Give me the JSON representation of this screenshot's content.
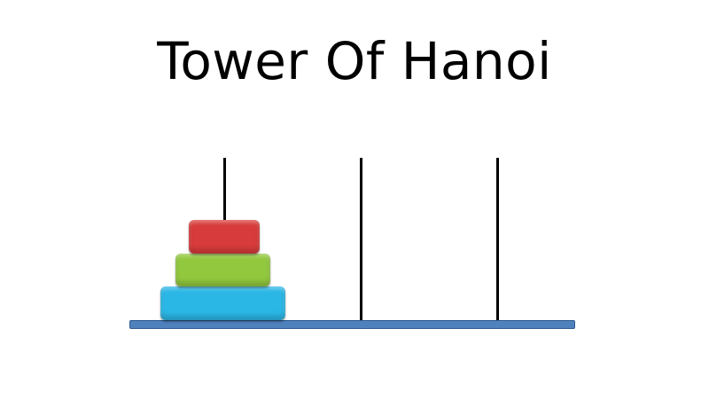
{
  "title": "Tower Of Hanoi",
  "colors": {
    "background": "#ffffff",
    "peg": "#000000",
    "base": "#4f81bd",
    "disk_small": "#d83b3b",
    "disk_medium": "#92c83e",
    "disk_large": "#2bb7e6"
  },
  "game": {
    "peg_count": 3,
    "pegs": [
      {
        "name": "peg-1",
        "disks": [
          "large",
          "medium",
          "small"
        ]
      },
      {
        "name": "peg-2",
        "disks": []
      },
      {
        "name": "peg-3",
        "disks": []
      }
    ]
  }
}
